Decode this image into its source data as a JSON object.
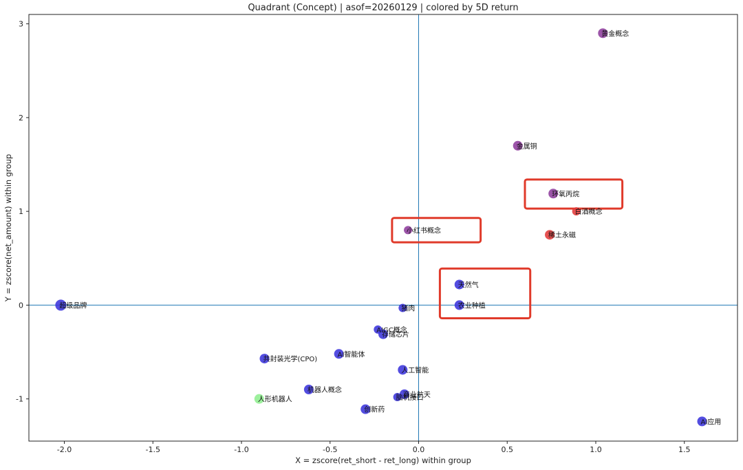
{
  "chart_data": {
    "type": "scatter",
    "title": "Quadrant (Concept) | asof=20260129 | colored by 5D return",
    "xlabel": "X = zscore(ret_short - ret_long) within group",
    "ylabel": "Y = zscore(net_amount) within group",
    "xlim": [
      -2.2,
      1.8
    ],
    "ylim": [
      -1.45,
      3.1
    ],
    "xticks": [
      -2.0,
      -1.5,
      -1.0,
      -0.5,
      0.0,
      0.5,
      1.0,
      1.5
    ],
    "xtick_labels": [
      "-2.0",
      "-1.5",
      "-1.0",
      "-0.5",
      "0.0",
      "0.5",
      "1.0",
      "1.5"
    ],
    "yticks": [
      -1,
      0,
      1,
      2,
      3
    ],
    "ytick_labels": [
      "-1",
      "0",
      "1",
      "2",
      "3"
    ],
    "quadrant_lines": {
      "x": 0,
      "y": 0,
      "color": "#1f77b4"
    },
    "colors": {
      "blue": "#3b34dc",
      "purple": "#8e3d9d",
      "red": "#e23a3a",
      "green": "#90ee90",
      "highlight_box": "#e03a2a"
    },
    "points": [
      {
        "label": "黄金概念",
        "x": 1.04,
        "y": 2.9,
        "color": "#8e3d9d",
        "size": 7
      },
      {
        "label": "金属铜",
        "x": 0.56,
        "y": 1.7,
        "color": "#8e3d9d",
        "size": 7
      },
      {
        "label": "环氧丙烷",
        "x": 0.76,
        "y": 1.19,
        "color": "#8e3d9d",
        "size": 7
      },
      {
        "label": "白酒概念",
        "x": 0.89,
        "y": 1.0,
        "color": "#e23a3a",
        "size": 6
      },
      {
        "label": "稀土永磁",
        "x": 0.74,
        "y": 0.75,
        "color": "#e23a3a",
        "size": 7
      },
      {
        "label": "小红书概念",
        "x": -0.06,
        "y": 0.8,
        "color": "#8e3d9d",
        "size": 6
      },
      {
        "label": "天然气",
        "x": 0.23,
        "y": 0.22,
        "color": "#3b34dc",
        "size": 7
      },
      {
        "label": "农业种植",
        "x": 0.23,
        "y": 0.0,
        "color": "#3b34dc",
        "size": 7
      },
      {
        "label": "超级品牌",
        "x": -2.02,
        "y": 0.0,
        "color": "#3b34dc",
        "size": 8
      },
      {
        "label": "猪肉",
        "x": -0.09,
        "y": -0.03,
        "color": "#3b34dc",
        "size": 6
      },
      {
        "label": "AIGC概念",
        "x": -0.23,
        "y": -0.26,
        "color": "#3b34dc",
        "size": 6
      },
      {
        "label": "存储芯片",
        "x": -0.2,
        "y": -0.31,
        "color": "#3b34dc",
        "size": 7
      },
      {
        "label": "AI智能体",
        "x": -0.45,
        "y": -0.52,
        "color": "#3b34dc",
        "size": 7
      },
      {
        "label": "共封装光学(CPO)",
        "x": -0.87,
        "y": -0.57,
        "color": "#3b34dc",
        "size": 7
      },
      {
        "label": "人工智能",
        "x": -0.09,
        "y": -0.69,
        "color": "#3b34dc",
        "size": 7
      },
      {
        "label": "机器人概念",
        "x": -0.62,
        "y": -0.9,
        "color": "#3b34dc",
        "size": 7
      },
      {
        "label": "人形机器人",
        "x": -0.9,
        "y": -1.0,
        "color": "#90ee90",
        "size": 7
      },
      {
        "label": "商业航天",
        "x": -0.08,
        "y": -0.95,
        "color": "#3b34dc",
        "size": 7
      },
      {
        "label": "脑机接口",
        "x": -0.12,
        "y": -0.98,
        "color": "#3b34dc",
        "size": 6
      },
      {
        "label": "创新药",
        "x": -0.3,
        "y": -1.11,
        "color": "#3b34dc",
        "size": 7
      },
      {
        "label": "AI应用",
        "x": 1.6,
        "y": -1.24,
        "color": "#3b34dc",
        "size": 7
      }
    ],
    "highlight_boxes": [
      {
        "x0": 0.6,
        "x1": 1.15,
        "y0": 1.03,
        "y1": 1.34
      },
      {
        "x0": -0.15,
        "x1": 0.35,
        "y0": 0.67,
        "y1": 0.93
      },
      {
        "x0": 0.12,
        "x1": 0.63,
        "y0": -0.14,
        "y1": 0.39
      }
    ]
  }
}
